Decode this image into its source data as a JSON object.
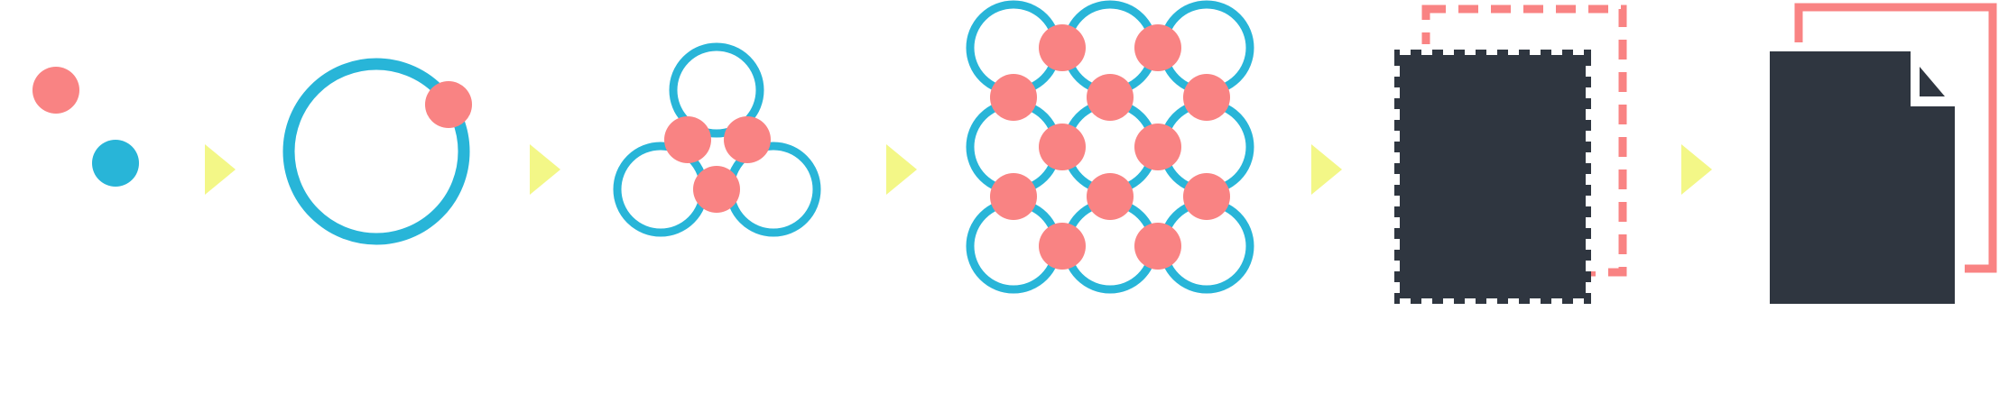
{
  "colors": {
    "background": "#ffffff",
    "coral": "#f98383",
    "teal": "#28b5d8",
    "arrow": "#f3f787",
    "dark": "#2f3640"
  },
  "steps": [
    {
      "id": "two-dots",
      "icon": "two-dots-icon"
    },
    {
      "id": "dot-on-ring",
      "icon": "ring-with-dot-icon"
    },
    {
      "id": "three-rings",
      "icon": "three-rings-icon"
    },
    {
      "id": "ring-grid",
      "icon": "ring-grid-icon"
    },
    {
      "id": "perforated-sheet",
      "icon": "perforated-sheet-icon"
    },
    {
      "id": "document",
      "icon": "document-icon"
    }
  ],
  "arrows": [
    {
      "icon": "arrow-right-icon"
    },
    {
      "icon": "arrow-right-icon"
    },
    {
      "icon": "arrow-right-icon"
    },
    {
      "icon": "arrow-right-icon"
    },
    {
      "icon": "arrow-right-icon"
    }
  ]
}
